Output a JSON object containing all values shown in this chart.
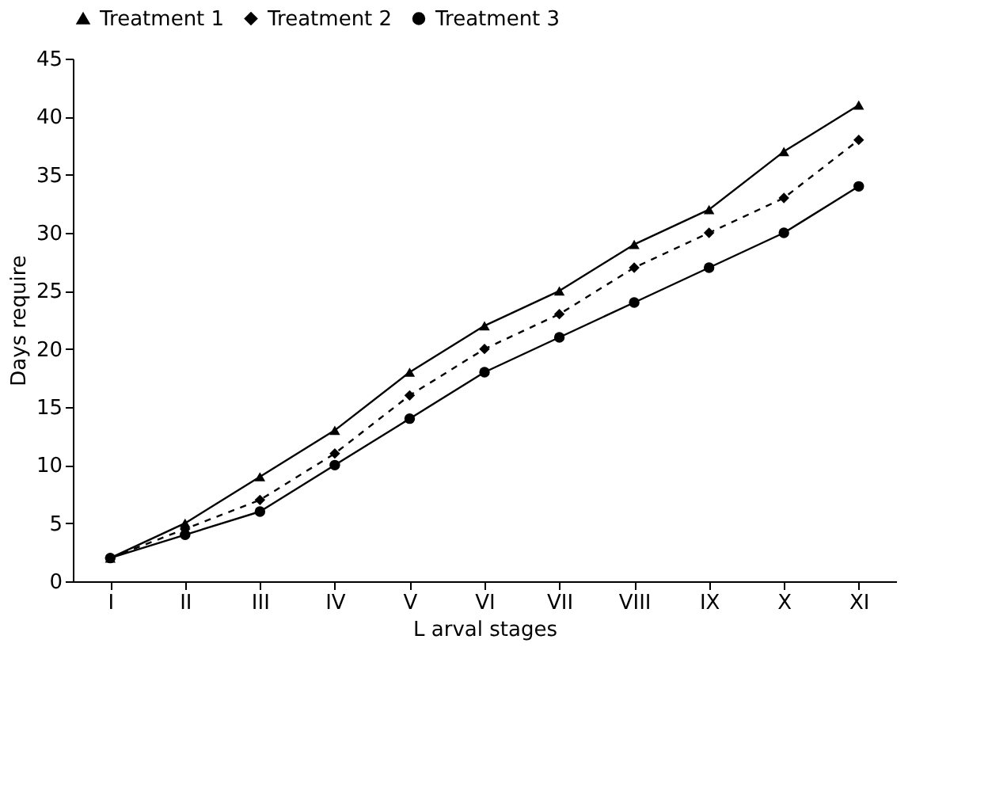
{
  "chart_data": {
    "type": "line",
    "xlabel": "L arval stages",
    "ylabel": "Days require",
    "categories": [
      "I",
      "II",
      "III",
      "IV",
      "V",
      "VI",
      "VII",
      "VIII",
      "IX",
      "X",
      "XI"
    ],
    "ylim": [
      0,
      45
    ],
    "yticks": [
      0,
      5,
      10,
      15,
      20,
      25,
      30,
      35,
      40,
      45
    ],
    "grid": false,
    "legend": "top",
    "series": [
      {
        "name": "Treatment 1",
        "color": "#000000",
        "marker": "triangle",
        "line_style": "solid",
        "values": [
          2,
          5,
          9,
          13,
          18,
          22,
          25,
          29,
          32,
          37,
          41
        ]
      },
      {
        "name": "Treatment 2",
        "color": "#000000",
        "marker": "diamond",
        "line_style": "dashed",
        "values": [
          2,
          4.5,
          7,
          11,
          16,
          20,
          23,
          27,
          30,
          33,
          38
        ]
      },
      {
        "name": "Treatment 3",
        "color": "#000000",
        "marker": "circle",
        "line_style": "solid",
        "values": [
          2,
          4,
          6,
          10,
          14,
          18,
          21,
          24,
          27,
          30,
          34
        ]
      }
    ]
  }
}
